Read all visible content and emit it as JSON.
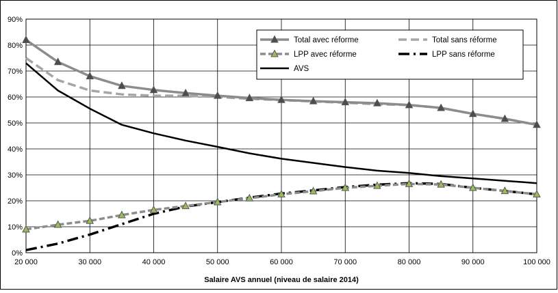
{
  "chart_data": {
    "type": "line",
    "xlabel": "Salaire AVS annuel (niveau de salaire 2014)",
    "ylabel": "",
    "x": [
      20000,
      25000,
      30000,
      35000,
      40000,
      45000,
      50000,
      55000,
      60000,
      65000,
      70000,
      75000,
      80000,
      85000,
      90000,
      95000,
      100000
    ],
    "xlim": [
      20000,
      100000
    ],
    "ylim": [
      0,
      90
    ],
    "x_ticks": [
      "20 000",
      "30 000",
      "40 000",
      "50 000",
      "60 000",
      "70 000",
      "80 000",
      "90 000",
      "100 000"
    ],
    "y_ticks": [
      "0%",
      "10%",
      "20%",
      "30%",
      "40%",
      "50%",
      "60%",
      "70%",
      "80%",
      "90%"
    ],
    "grid": true,
    "legend_position": "top-right",
    "series": [
      {
        "name": "Total avec réforme",
        "color": "#8c8c8c",
        "style": "solid-triangle",
        "values": [
          82,
          73.5,
          68,
          64.3,
          62.7,
          61.5,
          60.5,
          59.6,
          58.9,
          58.4,
          58,
          57.6,
          56.9,
          55.8,
          53.5,
          51.6,
          49.3
        ]
      },
      {
        "name": "Total sans réforme",
        "color": "#a6a6a6",
        "style": "dashed",
        "values": [
          75,
          66.5,
          62.5,
          61,
          60.5,
          60.5,
          60,
          59.3,
          58.8,
          58.3,
          57.8,
          57.2,
          56.9,
          55.8,
          53.5,
          51.6,
          49.3
        ]
      },
      {
        "name": "LPP avec réforme",
        "color": "#8c8c8c",
        "marker_fill": "#9bbb59",
        "style": "dashed-triangle",
        "values": [
          9,
          10.8,
          12.3,
          14.5,
          16.5,
          18,
          19.5,
          21,
          22.5,
          23.7,
          25,
          25.8,
          26.5,
          26.3,
          25,
          23.8,
          22.5
        ]
      },
      {
        "name": "LPP sans réforme",
        "color": "#000000",
        "style": "dashdot",
        "values": [
          1,
          3.5,
          7,
          11,
          15,
          17.8,
          19.5,
          21.2,
          22.8,
          24,
          25.3,
          26.2,
          26.8,
          26.5,
          25,
          23.8,
          22.5
        ]
      },
      {
        "name": "AVS",
        "color": "#000000",
        "style": "solid",
        "values": [
          73,
          62.5,
          55.5,
          49.3,
          46,
          43.2,
          40.8,
          38.3,
          36.2,
          34.6,
          33,
          31.6,
          30.7,
          29.5,
          28.6,
          27.7,
          26.8
        ]
      }
    ]
  }
}
